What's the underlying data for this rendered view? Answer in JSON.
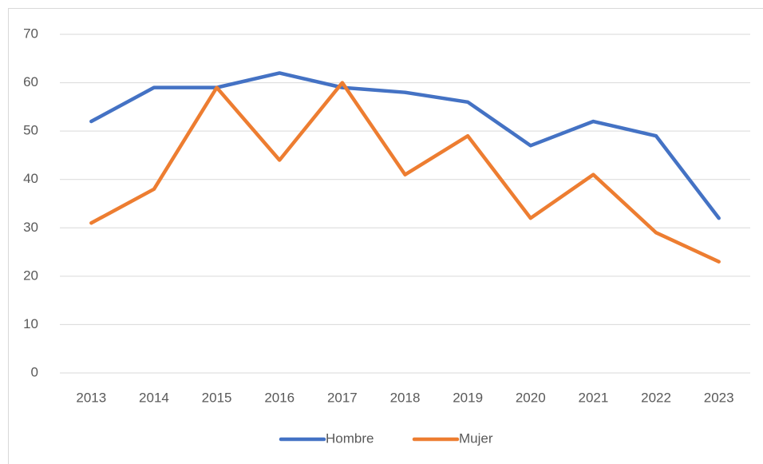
{
  "chart_data": {
    "type": "line",
    "categories": [
      "2013",
      "2014",
      "2015",
      "2016",
      "2017",
      "2018",
      "2019",
      "2020",
      "2021",
      "2022",
      "2023"
    ],
    "series": [
      {
        "name": "Hombre",
        "color": "#4472c4",
        "values": [
          52,
          59,
          59,
          62,
          59,
          58,
          56,
          47,
          52,
          49,
          32
        ]
      },
      {
        "name": "Mujer",
        "color": "#ed7d31",
        "values": [
          31,
          38,
          59,
          44,
          60,
          41,
          49,
          32,
          41,
          29,
          23
        ]
      }
    ],
    "ylim": [
      0,
      70
    ],
    "yticks": [
      0,
      10,
      20,
      30,
      40,
      50,
      60,
      70
    ],
    "grid": true,
    "legend": "bottom"
  }
}
